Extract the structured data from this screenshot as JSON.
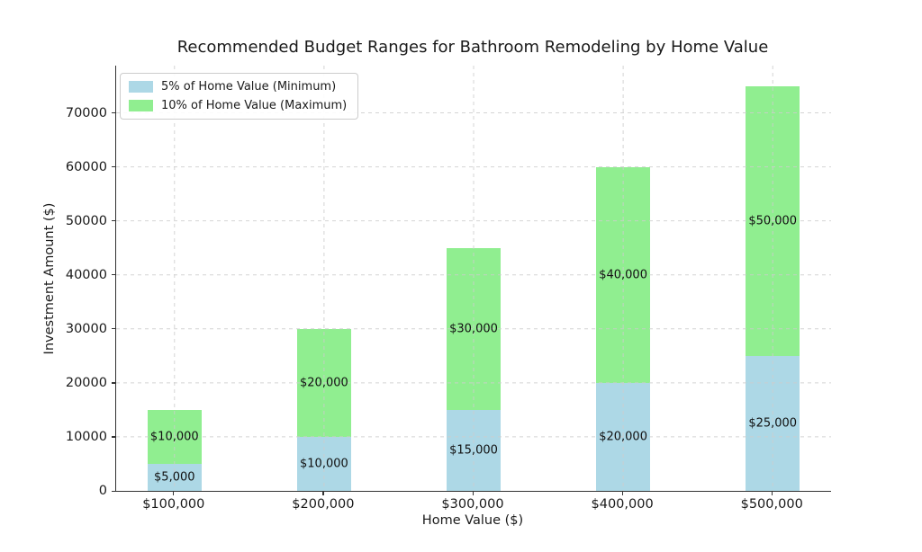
{
  "chart_data": {
    "type": "bar",
    "stacked": true,
    "title": "Recommended Budget Ranges for Bathroom Remodeling by Home Value",
    "xlabel": "Home Value ($)",
    "ylabel": "Investment Amount ($)",
    "categories": [
      "$100,000",
      "$200,000",
      "$300,000",
      "$400,000",
      "$500,000"
    ],
    "series": [
      {
        "name": "5% of Home Value (Minimum)",
        "color": "#ADD8E6",
        "values": [
          5000,
          10000,
          15000,
          20000,
          25000
        ],
        "labels": [
          "$5,000",
          "$10,000",
          "$15,000",
          "$20,000",
          "$25,000"
        ]
      },
      {
        "name": "10% of Home Value (Maximum)",
        "color": "#90EE90",
        "values": [
          10000,
          20000,
          30000,
          40000,
          50000
        ],
        "labels": [
          "$10,000",
          "$20,000",
          "$30,000",
          "$40,000",
          "$50,000"
        ]
      }
    ],
    "stack_totals": [
      15000,
      30000,
      45000,
      60000,
      75000
    ],
    "ylim": [
      0,
      78750
    ],
    "xlim": [
      -0.39,
      4.39
    ],
    "bar_width": 0.36,
    "yticks": [
      0,
      10000,
      20000,
      30000,
      40000,
      50000,
      60000,
      70000
    ],
    "ytick_labels": [
      "0",
      "10000",
      "20000",
      "30000",
      "40000",
      "50000",
      "60000",
      "70000"
    ],
    "grid": true,
    "grid_style": "dashed",
    "legend_position": "upper left"
  },
  "colors": {
    "background": "#ffffff",
    "grid": "#cccccc",
    "spine": "#333333",
    "text": "#1a1a1a",
    "series_min": "#ADD8E6",
    "series_max": "#90EE90"
  }
}
